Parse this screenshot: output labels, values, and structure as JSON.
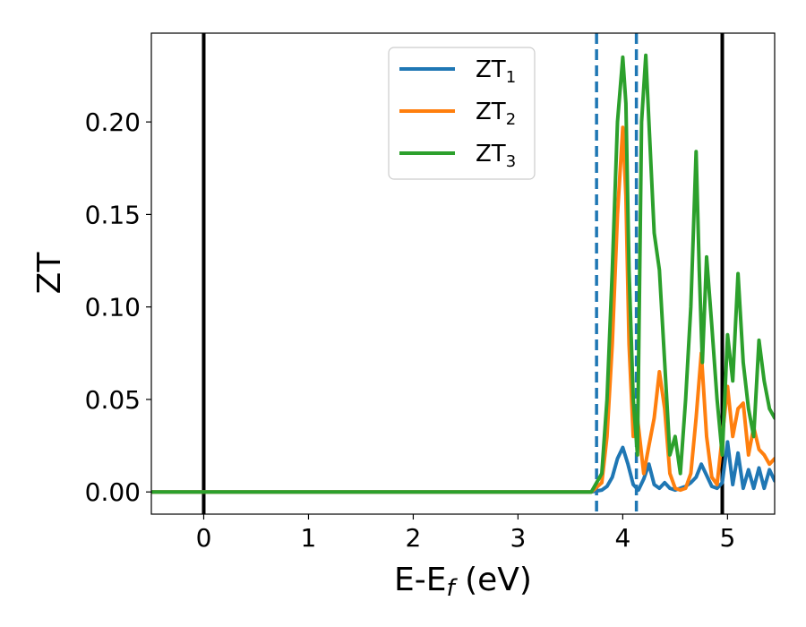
{
  "chart_data": {
    "type": "line",
    "xlabel_main": "E-E",
    "xlabel_sub": "f",
    "xlabel_unit": " (eV)",
    "ylabel": "ZT",
    "xlim": [
      -0.5,
      5.45
    ],
    "ylim": [
      -0.012,
      0.248
    ],
    "xticks": [
      0,
      1,
      2,
      3,
      4,
      5
    ],
    "yticks": [
      0.0,
      0.05,
      0.1,
      0.15,
      0.2
    ],
    "ytick_labels": [
      "0.00",
      "0.05",
      "0.10",
      "0.15",
      "0.20"
    ],
    "legend": {
      "position": "top-center",
      "entries": [
        {
          "base": "ZT",
          "sub": "1",
          "color": "#1f77b4"
        },
        {
          "base": "ZT",
          "sub": "2",
          "color": "#ff7f0e"
        },
        {
          "base": "ZT",
          "sub": "3",
          "color": "#2ca02c"
        }
      ]
    },
    "vlines": [
      {
        "x": 0.0,
        "style": "solid",
        "color": "#000000"
      },
      {
        "x": 4.95,
        "style": "solid",
        "color": "#000000"
      },
      {
        "x": 3.75,
        "style": "dashed",
        "color": "#1f77b4"
      },
      {
        "x": 4.13,
        "style": "dashed",
        "color": "#1f77b4"
      }
    ],
    "series": [
      {
        "name": "ZT1",
        "color": "#1f77b4",
        "x": [
          -0.5,
          3.7,
          3.8,
          3.85,
          3.9,
          3.95,
          4.0,
          4.05,
          4.1,
          4.15,
          4.2,
          4.25,
          4.3,
          4.35,
          4.4,
          4.45,
          4.5,
          4.55,
          4.6,
          4.65,
          4.7,
          4.75,
          4.8,
          4.85,
          4.9,
          4.95,
          5.0,
          5.05,
          5.1,
          5.15,
          5.2,
          5.25,
          5.3,
          5.35,
          5.4,
          5.45
        ],
        "y": [
          0.0,
          0.0,
          0.001,
          0.003,
          0.008,
          0.018,
          0.024,
          0.015,
          0.004,
          0.001,
          0.007,
          0.015,
          0.004,
          0.002,
          0.005,
          0.002,
          0.001,
          0.002,
          0.003,
          0.005,
          0.008,
          0.015,
          0.009,
          0.003,
          0.002,
          0.005,
          0.027,
          0.004,
          0.021,
          0.002,
          0.012,
          0.002,
          0.013,
          0.002,
          0.012,
          0.006
        ]
      },
      {
        "name": "ZT2",
        "color": "#ff7f0e",
        "x": [
          -0.5,
          3.7,
          3.8,
          3.85,
          3.9,
          3.95,
          4.0,
          4.03,
          4.06,
          4.1,
          4.14,
          4.2,
          4.25,
          4.3,
          4.35,
          4.4,
          4.45,
          4.5,
          4.55,
          4.6,
          4.65,
          4.7,
          4.75,
          4.8,
          4.85,
          4.9,
          4.95,
          5.0,
          5.05,
          5.1,
          5.15,
          5.2,
          5.25,
          5.3,
          5.35,
          5.4,
          5.45
        ],
        "y": [
          0.0,
          0.0,
          0.005,
          0.03,
          0.08,
          0.15,
          0.197,
          0.16,
          0.08,
          0.03,
          0.04,
          0.01,
          0.025,
          0.04,
          0.065,
          0.045,
          0.01,
          0.002,
          0.001,
          0.002,
          0.01,
          0.04,
          0.075,
          0.03,
          0.008,
          0.004,
          0.03,
          0.057,
          0.03,
          0.045,
          0.048,
          0.02,
          0.035,
          0.023,
          0.02,
          0.015,
          0.018
        ]
      },
      {
        "name": "ZT3",
        "color": "#2ca02c",
        "x": [
          -0.5,
          3.7,
          3.8,
          3.85,
          3.9,
          3.95,
          4.0,
          4.03,
          4.06,
          4.1,
          4.14,
          4.18,
          4.22,
          4.25,
          4.3,
          4.35,
          4.4,
          4.45,
          4.5,
          4.55,
          4.6,
          4.65,
          4.7,
          4.73,
          4.76,
          4.8,
          4.85,
          4.9,
          4.95,
          5.0,
          5.05,
          5.1,
          5.15,
          5.2,
          5.25,
          5.3,
          5.35,
          5.4,
          5.45
        ],
        "y": [
          0.0,
          0.0,
          0.01,
          0.05,
          0.12,
          0.2,
          0.235,
          0.21,
          0.12,
          0.05,
          0.02,
          0.2,
          0.236,
          0.2,
          0.14,
          0.12,
          0.07,
          0.02,
          0.03,
          0.01,
          0.05,
          0.1,
          0.184,
          0.12,
          0.07,
          0.127,
          0.09,
          0.05,
          0.02,
          0.085,
          0.06,
          0.118,
          0.07,
          0.045,
          0.03,
          0.082,
          0.06,
          0.045,
          0.04
        ]
      }
    ]
  }
}
